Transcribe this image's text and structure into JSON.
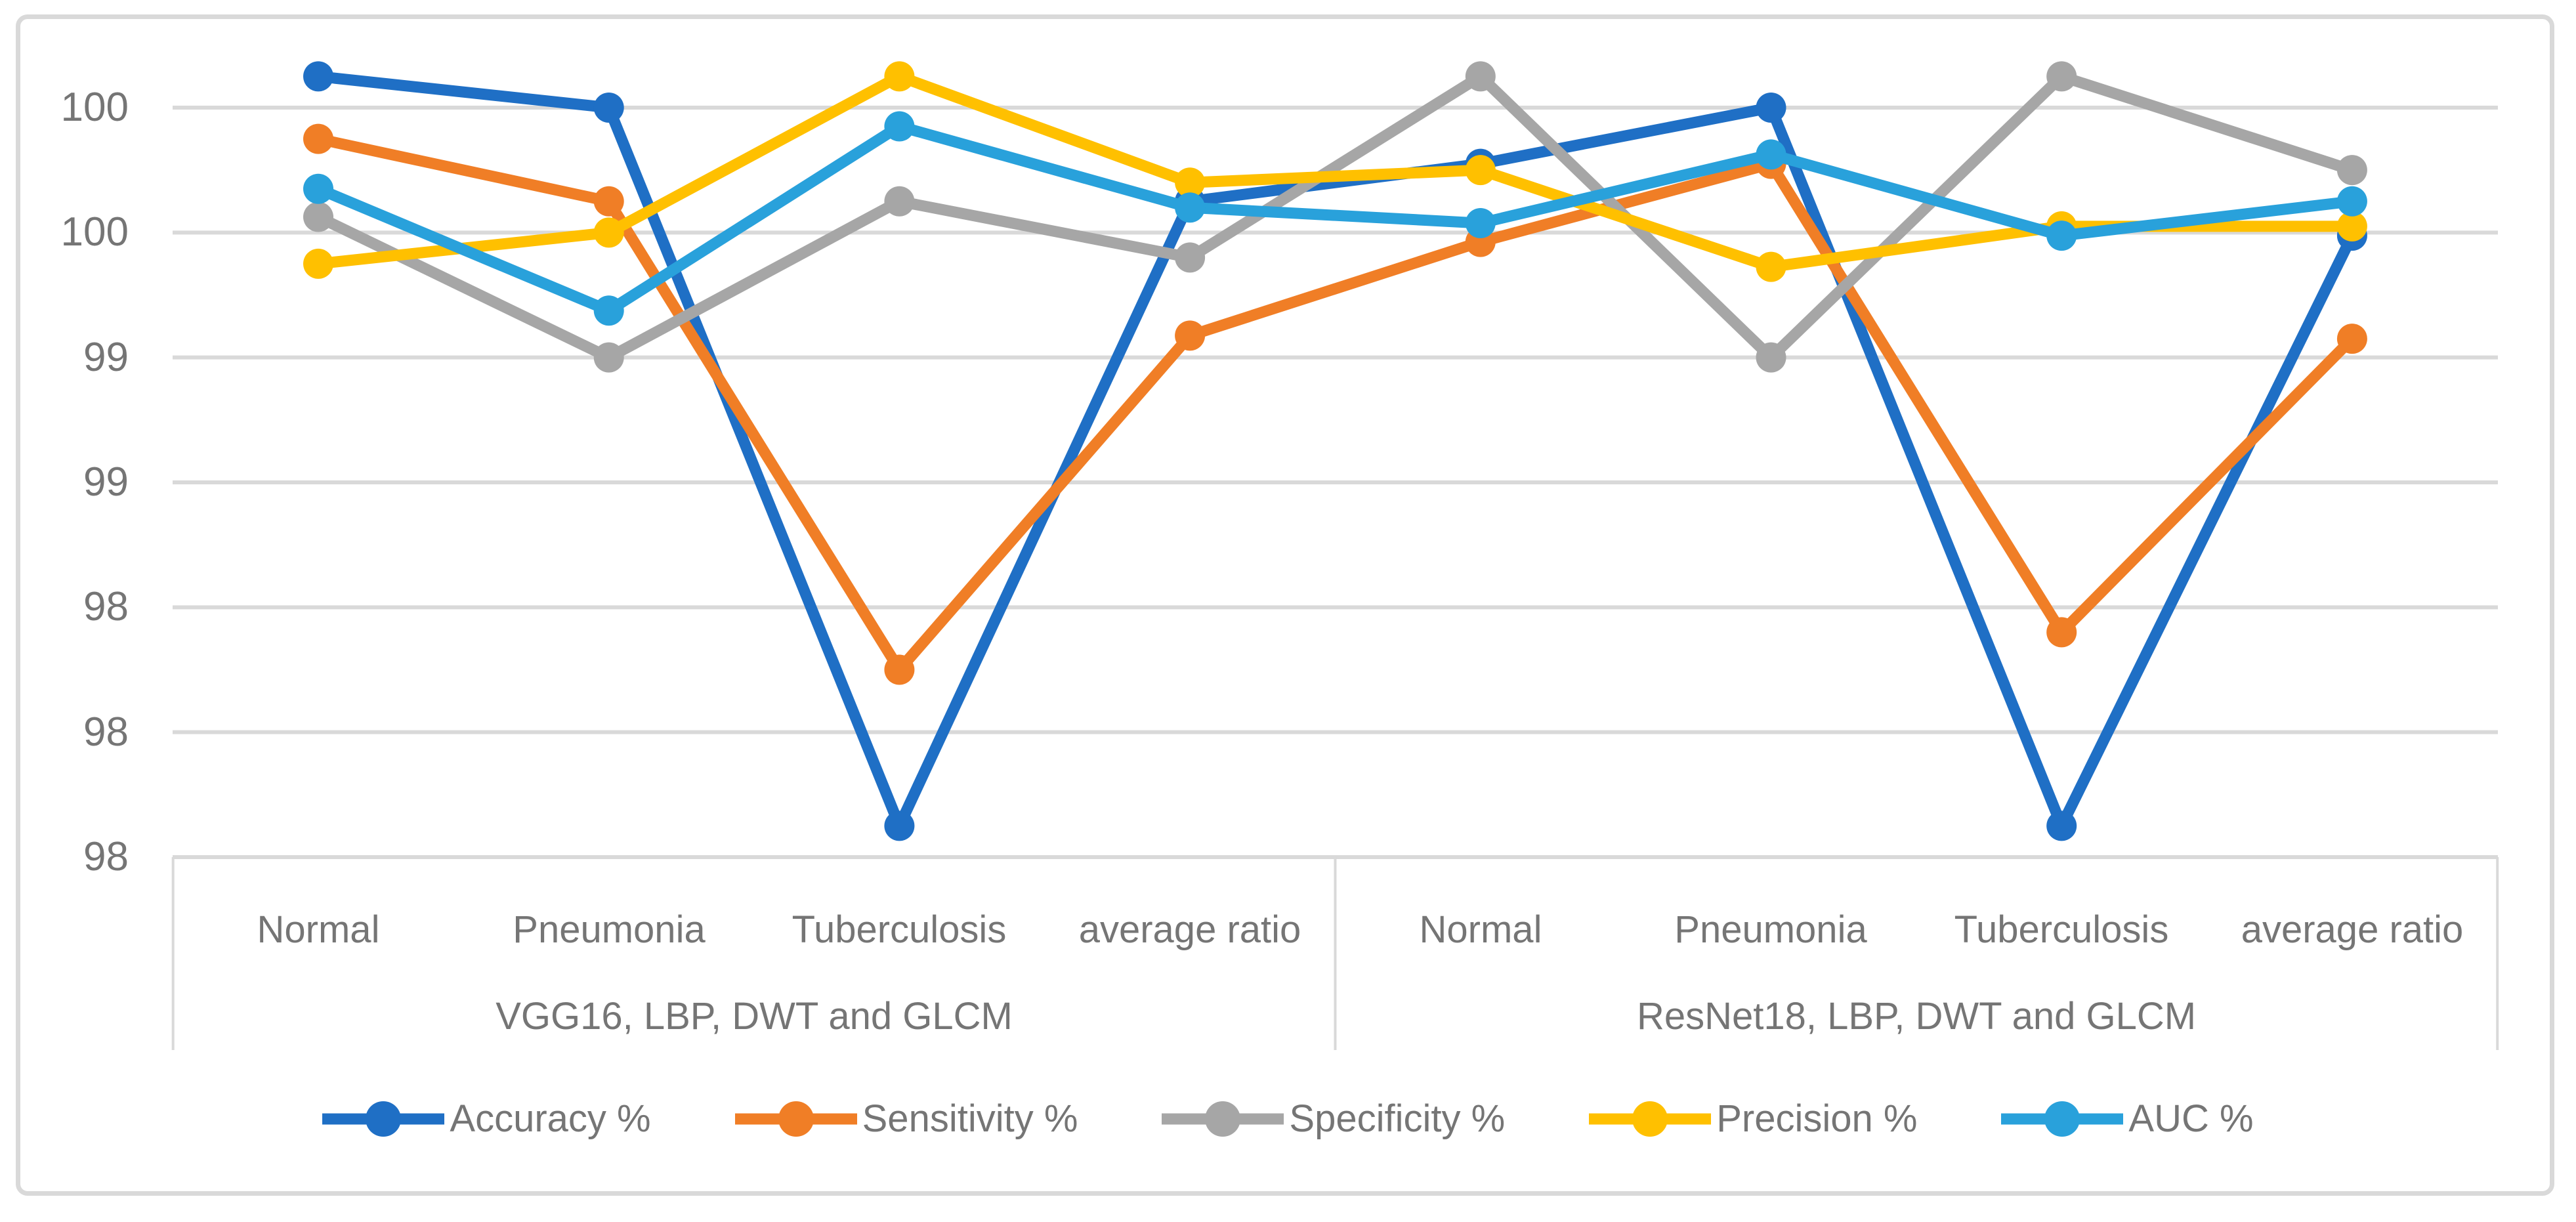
{
  "chart_data": {
    "type": "line",
    "title": "",
    "y_axis": {
      "tick_labels": [
        "100",
        "100",
        "99",
        "99",
        "98",
        "98",
        "98"
      ],
      "tick_values": [
        99.9,
        99.5,
        99.1,
        98.7,
        98.3,
        97.9,
        97.5
      ],
      "major_unit": 0.4,
      "axis_range_note": "gridlines every 0.4 from 97.5 to 99.9, labels rounded to integers",
      "grid": true
    },
    "x_axis": {
      "categories": [
        "Normal",
        "Pneumonia",
        "Tuberculosis",
        "average ratio",
        "Normal",
        "Pneumonia",
        "Tuberculosis",
        "average ratio"
      ],
      "groups": [
        {
          "label": "VGG16, LBP, DWT and GLCM"
        },
        {
          "label": "ResNet18, LBP, DWT and GLCM"
        }
      ]
    },
    "legend_position": "bottom",
    "series": [
      {
        "name": "Accuracy %",
        "color": "#1F6FC5",
        "values": [
          100.0,
          99.9,
          97.6,
          99.6,
          99.72,
          99.9,
          97.6,
          99.49
        ]
      },
      {
        "name": "Sensitivity %",
        "color": "#F07E26",
        "values": [
          99.8,
          99.6,
          98.1,
          99.17,
          99.47,
          99.72,
          98.22,
          99.16
        ]
      },
      {
        "name": "Specificity %",
        "color": "#A6A6A6",
        "values": [
          99.55,
          99.1,
          99.6,
          99.42,
          100.0,
          99.1,
          100.0,
          99.7
        ]
      },
      {
        "name": "Precision %",
        "color": "#FFC000",
        "values": [
          99.4,
          99.5,
          100.0,
          99.66,
          99.7,
          99.39,
          99.52,
          99.52
        ]
      },
      {
        "name": "AUC %",
        "color": "#29A1DB",
        "values": [
          99.64,
          99.25,
          99.84,
          99.58,
          99.53,
          99.75,
          99.49,
          99.6
        ]
      }
    ]
  },
  "colors": {
    "grid": "#D9D9D9",
    "border": "#D9D9D9",
    "axis_text": "#757575"
  }
}
